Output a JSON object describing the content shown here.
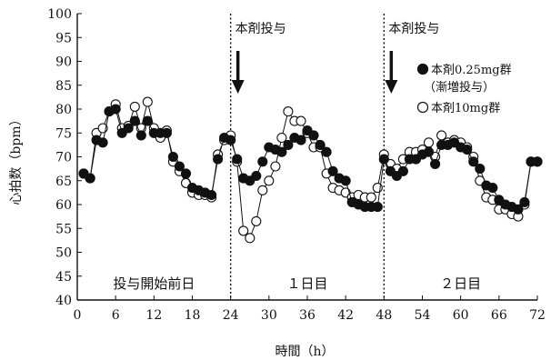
{
  "chart_data": {
    "type": "line",
    "xlabel": "時間（h）",
    "ylabel": "心拍数（bpm）",
    "xlim": [
      0,
      72
    ],
    "ylim": [
      40,
      100
    ],
    "xticks": [
      0,
      6,
      12,
      18,
      24,
      30,
      36,
      42,
      48,
      54,
      60,
      66,
      72
    ],
    "yticks": [
      40,
      45,
      50,
      55,
      60,
      65,
      70,
      75,
      80,
      85,
      90,
      95,
      100
    ],
    "grid": false,
    "legend_position": "top-right",
    "dose_lines": [
      {
        "x": 24,
        "label": "本剤投与"
      },
      {
        "x": 48,
        "label": "本剤投与"
      }
    ],
    "period_labels": [
      {
        "x": 12,
        "text": "投与開始前日"
      },
      {
        "x": 36,
        "text": "１日目"
      },
      {
        "x": 60,
        "text": "２日目"
      }
    ],
    "series": [
      {
        "name": "本剤0.25mg群",
        "name_note": "（漸増投与）",
        "marker": "filled",
        "points": [
          [
            1,
            66.5
          ],
          [
            2,
            65.5
          ],
          [
            3,
            73.5
          ],
          [
            4,
            73
          ],
          [
            5,
            79.5
          ],
          [
            6,
            80
          ],
          [
            7,
            75
          ],
          [
            8,
            76
          ],
          [
            9,
            77.5
          ],
          [
            10,
            74.5
          ],
          [
            11,
            77.5
          ],
          [
            12,
            75
          ],
          [
            13,
            75
          ],
          [
            14,
            75
          ],
          [
            15,
            70
          ],
          [
            16,
            68
          ],
          [
            17,
            66.5
          ],
          [
            18,
            63.5
          ],
          [
            19,
            63
          ],
          [
            20,
            62.5
          ],
          [
            21,
            62
          ],
          [
            22,
            69.5
          ],
          [
            23,
            74
          ],
          [
            24,
            73.5
          ],
          [
            25,
            69.5
          ],
          [
            26,
            65.5
          ],
          [
            27,
            65
          ],
          [
            28,
            66
          ],
          [
            29,
            69
          ],
          [
            30,
            72
          ],
          [
            31,
            71.5
          ],
          [
            32,
            71
          ],
          [
            33,
            72.5
          ],
          [
            34,
            74
          ],
          [
            35,
            73.5
          ],
          [
            36,
            75.5
          ],
          [
            37,
            74.5
          ],
          [
            38,
            72.5
          ],
          [
            39,
            71
          ],
          [
            40,
            67
          ],
          [
            41,
            65.5
          ],
          [
            42,
            65
          ],
          [
            43,
            60.5
          ],
          [
            44,
            60
          ],
          [
            45,
            59.5
          ],
          [
            46,
            59.5
          ],
          [
            47,
            59.5
          ],
          [
            48,
            69.5
          ],
          [
            49,
            67
          ],
          [
            50,
            66
          ],
          [
            51,
            67
          ],
          [
            52,
            69.5
          ],
          [
            53,
            69.5
          ],
          [
            54,
            70.5
          ],
          [
            55,
            71
          ],
          [
            56,
            68.5
          ],
          [
            57,
            72.5
          ],
          [
            58,
            72.5
          ],
          [
            59,
            73
          ],
          [
            60,
            72
          ],
          [
            61,
            71.5
          ],
          [
            62,
            69
          ],
          [
            63,
            67.5
          ],
          [
            64,
            64
          ],
          [
            65,
            63.5
          ],
          [
            66,
            61
          ],
          [
            67,
            60
          ],
          [
            68,
            59.5
          ],
          [
            69,
            59
          ],
          [
            70,
            60.5
          ],
          [
            71,
            69
          ],
          [
            72,
            69
          ]
        ]
      },
      {
        "name": "本剤10mg群",
        "marker": "open",
        "points": [
          [
            1,
            66.5
          ],
          [
            2,
            65.5
          ],
          [
            3,
            75
          ],
          [
            4,
            76
          ],
          [
            5,
            79.5
          ],
          [
            6,
            81
          ],
          [
            7,
            76
          ],
          [
            8,
            76.5
          ],
          [
            9,
            80.5
          ],
          [
            10,
            76
          ],
          [
            11,
            81.5
          ],
          [
            12,
            76
          ],
          [
            13,
            74
          ],
          [
            14,
            75.5
          ],
          [
            15,
            69
          ],
          [
            16,
            67
          ],
          [
            17,
            64.5
          ],
          [
            18,
            62.5
          ],
          [
            19,
            62
          ],
          [
            20,
            62
          ],
          [
            21,
            61.5
          ],
          [
            22,
            70.5
          ],
          [
            23,
            73.5
          ],
          [
            24,
            74.5
          ],
          [
            25,
            69
          ],
          [
            26,
            54.5
          ],
          [
            27,
            53
          ],
          [
            28,
            56.5
          ],
          [
            29,
            63
          ],
          [
            30,
            65
          ],
          [
            31,
            68
          ],
          [
            32,
            74
          ],
          [
            33,
            79.5
          ],
          [
            34,
            77.5
          ],
          [
            35,
            77.5
          ],
          [
            36,
            75
          ],
          [
            37,
            72
          ],
          [
            38,
            72
          ],
          [
            39,
            66.5
          ],
          [
            40,
            63.5
          ],
          [
            41,
            63
          ],
          [
            42,
            62.5
          ],
          [
            43,
            61.5
          ],
          [
            44,
            62
          ],
          [
            45,
            61.5
          ],
          [
            46,
            61.5
          ],
          [
            47,
            63.5
          ],
          [
            48,
            70.5
          ],
          [
            49,
            68.5
          ],
          [
            50,
            67.5
          ],
          [
            51,
            69.5
          ],
          [
            52,
            71
          ],
          [
            53,
            71
          ],
          [
            54,
            71.5
          ],
          [
            55,
            73
          ],
          [
            56,
            70
          ],
          [
            57,
            74.5
          ],
          [
            58,
            73
          ],
          [
            59,
            73.5
          ],
          [
            60,
            73
          ],
          [
            61,
            72
          ],
          [
            62,
            70
          ],
          [
            63,
            65
          ],
          [
            64,
            61.5
          ],
          [
            65,
            61
          ],
          [
            66,
            59
          ],
          [
            67,
            59
          ],
          [
            68,
            58
          ],
          [
            69,
            57.5
          ],
          [
            70,
            60
          ],
          [
            71,
            69
          ],
          [
            72,
            69
          ]
        ]
      }
    ]
  }
}
